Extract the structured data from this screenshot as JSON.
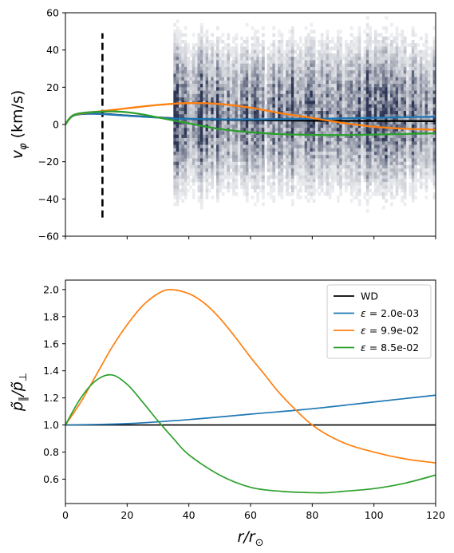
{
  "chart_data": [
    {
      "type": "line",
      "subtype": "line-over-2d-histogram",
      "ylabel": "v_φ (km/s)",
      "xlim": [
        0,
        120
      ],
      "ylim": [
        -60,
        60
      ],
      "yticks": [
        "−60",
        "−40",
        "−20",
        "0",
        "20",
        "40",
        "60"
      ],
      "xticks": [
        0,
        20,
        40,
        60,
        80,
        100,
        120
      ],
      "show_x_tick_labels": false,
      "histogram": {
        "x_range": [
          35,
          120
        ],
        "y_range": [
          -60,
          60
        ],
        "colormap": "bone_r (white → dark slate blue)"
      },
      "vertical_dashed_line": {
        "x": 12,
        "y_range": [
          -50,
          49
        ],
        "color": "#000000"
      },
      "series": [
        {
          "color": "#000000",
          "x": [
            0,
            1,
            2,
            3,
            5,
            8,
            12,
            20,
            30,
            40,
            60,
            80,
            100,
            120
          ],
          "y": [
            0,
            2.5,
            4.2,
            5.0,
            5.6,
            5.8,
            5.7,
            4.8,
            3.8,
            3.0,
            2.3,
            2.0,
            1.9,
            1.8
          ]
        },
        {
          "color": "#1f77b4",
          "x": [
            0,
            1,
            2,
            3,
            5,
            8,
            12,
            20,
            30,
            40,
            60,
            80,
            100,
            120
          ],
          "y": [
            0,
            2.5,
            4.2,
            5.0,
            5.6,
            5.8,
            5.6,
            4.7,
            3.7,
            3.0,
            2.7,
            3.0,
            3.6,
            4.2
          ]
        },
        {
          "color": "#ff7f0e",
          "x": [
            0,
            1,
            2,
            3,
            5,
            8,
            12,
            20,
            30,
            40,
            50,
            60,
            70,
            80,
            90,
            100,
            110,
            120
          ],
          "y": [
            0,
            2.6,
            4.4,
            5.2,
            5.9,
            6.5,
            7.2,
            8.7,
            10.5,
            11.5,
            11.0,
            9.0,
            6.0,
            3.5,
            0.8,
            -1.2,
            -2.3,
            -2.8
          ]
        },
        {
          "color": "#2ca02c",
          "x": [
            0,
            1,
            2,
            3,
            5,
            8,
            12,
            16,
            20,
            25,
            30,
            40,
            50,
            60,
            70,
            80,
            90,
            100,
            110,
            120
          ],
          "y": [
            0,
            2.6,
            4.4,
            5.3,
            6.1,
            6.6,
            6.9,
            7.0,
            6.6,
            5.4,
            3.8,
            0.6,
            -2.4,
            -4.2,
            -5.2,
            -5.6,
            -5.7,
            -5.4,
            -5.1,
            -4.7
          ]
        }
      ]
    },
    {
      "type": "line",
      "ylabel": "p̃_∥/p̃_⊥",
      "xlabel": "r/r_⊙",
      "xlim": [
        0,
        120
      ],
      "ylim": [
        0.42,
        2.07
      ],
      "yticks": [
        "0.6",
        "0.8",
        "1.0",
        "1.2",
        "1.4",
        "1.6",
        "1.8",
        "2.0"
      ],
      "xticks": [
        "0",
        "20",
        "40",
        "60",
        "80",
        "100",
        "120"
      ],
      "legend": "top-right",
      "series": [
        {
          "name": "WD",
          "legend_label": "WD",
          "color": "#000000",
          "x": [
            0,
            120
          ],
          "y": [
            1.0,
            1.0
          ]
        },
        {
          "name": "ε = 2.0e-03",
          "legend_label": "ε = 2.0e-03",
          "color": "#1f77b4",
          "x": [
            0,
            20,
            40,
            60,
            80,
            100,
            120
          ],
          "y": [
            1.0,
            1.01,
            1.04,
            1.08,
            1.12,
            1.17,
            1.22
          ]
        },
        {
          "name": "ε = 9.9e-02",
          "legend_label": "ε = 9.9e-02",
          "color": "#ff7f0e",
          "x": [
            0,
            5,
            10,
            15,
            20,
            25,
            30,
            34,
            40,
            45,
            50,
            55,
            60,
            65,
            70,
            80,
            90,
            100,
            110,
            120
          ],
          "y": [
            1.0,
            1.17,
            1.37,
            1.57,
            1.74,
            1.88,
            1.97,
            2.0,
            1.97,
            1.9,
            1.79,
            1.65,
            1.5,
            1.36,
            1.22,
            1.0,
            0.87,
            0.8,
            0.75,
            0.72
          ]
        },
        {
          "name": "ε = 8.5e-02",
          "legend_label": "ε = 8.5e-02",
          "color": "#2ca02c",
          "x": [
            0,
            5,
            10,
            15,
            20,
            25,
            30,
            35,
            40,
            50,
            60,
            70,
            80,
            85,
            90,
            100,
            110,
            120
          ],
          "y": [
            1.0,
            1.2,
            1.33,
            1.37,
            1.3,
            1.17,
            1.03,
            0.9,
            0.78,
            0.63,
            0.54,
            0.51,
            0.5,
            0.5,
            0.51,
            0.53,
            0.57,
            0.63
          ]
        }
      ]
    }
  ]
}
